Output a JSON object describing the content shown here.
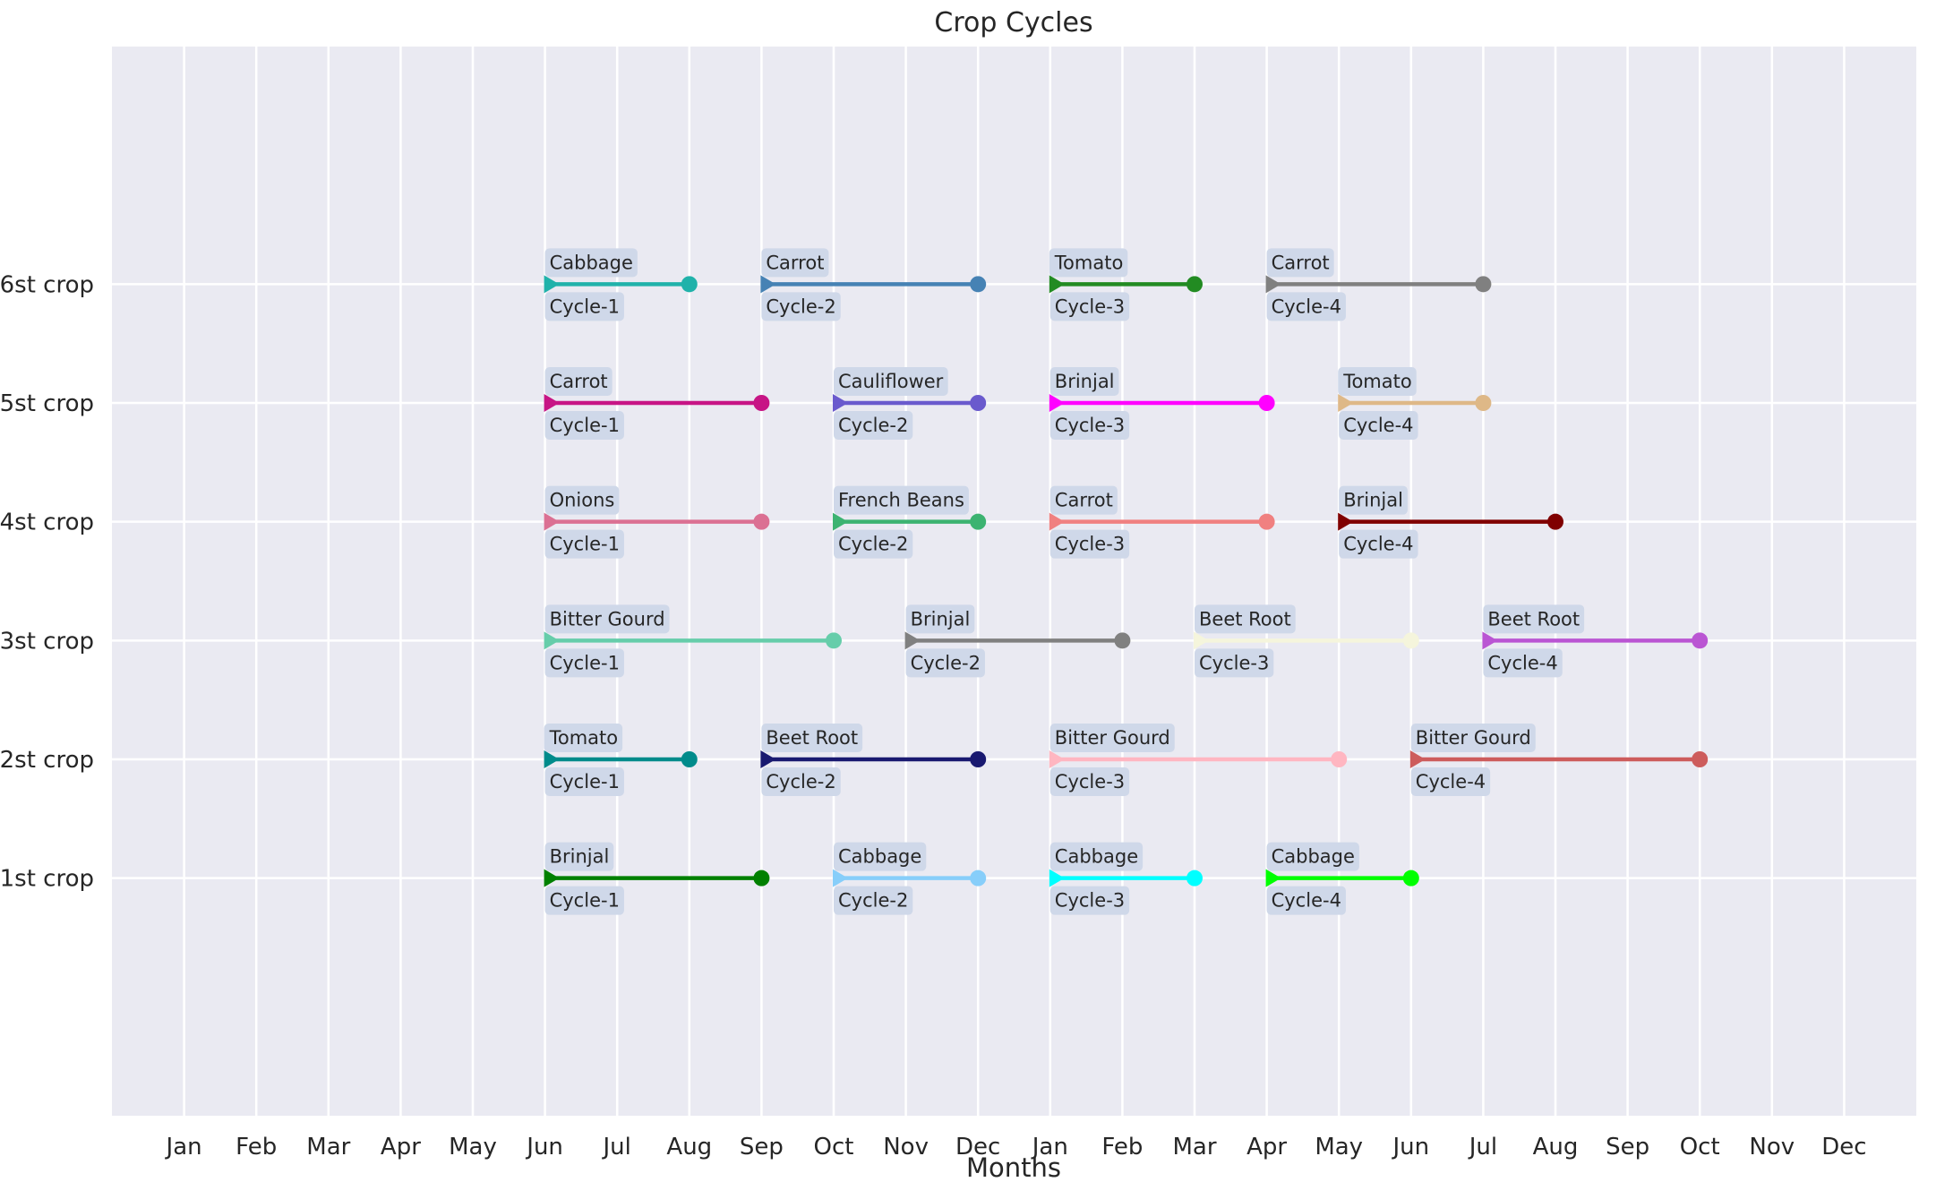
{
  "chart_data": {
    "type": "gantt-line",
    "title": "Crop Cycles",
    "xlabel": "Months",
    "ylabel": "",
    "grid": true,
    "x_tick_labels": [
      "Jan",
      "Feb",
      "Mar",
      "Apr",
      "May",
      "Jun",
      "Jul",
      "Aug",
      "Sep",
      "Oct",
      "Nov",
      "Dec",
      "Jan",
      "Feb",
      "Mar",
      "Apr",
      "May",
      "Jun",
      "Jul",
      "Aug",
      "Sep",
      "Oct",
      "Nov",
      "Dec"
    ],
    "xlim": [
      0,
      25
    ],
    "y_tick_labels": [
      "1st crop",
      "2st crop",
      "3st crop",
      "4st crop",
      "5st crop",
      "6st crop"
    ],
    "ylim": [
      -1,
      8
    ],
    "segments": [
      {
        "row": 1,
        "crop": "Brinjal",
        "cycle": "Cycle-1",
        "start": 6,
        "end": 9,
        "color": "#008000"
      },
      {
        "row": 1,
        "crop": "Cabbage",
        "cycle": "Cycle-2",
        "start": 10,
        "end": 12,
        "color": "#87cefa"
      },
      {
        "row": 1,
        "crop": "Cabbage",
        "cycle": "Cycle-3",
        "start": 13,
        "end": 15,
        "color": "#00ffff"
      },
      {
        "row": 1,
        "crop": "Cabbage",
        "cycle": "Cycle-4",
        "start": 16,
        "end": 18,
        "color": "#00ff00"
      },
      {
        "row": 2,
        "crop": "Tomato",
        "cycle": "Cycle-1",
        "start": 6,
        "end": 8,
        "color": "#008b8b"
      },
      {
        "row": 2,
        "crop": "Beet Root",
        "cycle": "Cycle-2",
        "start": 9,
        "end": 12,
        "color": "#191970"
      },
      {
        "row": 2,
        "crop": "Bitter Gourd",
        "cycle": "Cycle-3",
        "start": 13,
        "end": 17,
        "color": "#ffb6c1"
      },
      {
        "row": 2,
        "crop": "Bitter Gourd",
        "cycle": "Cycle-4",
        "start": 18,
        "end": 22,
        "color": "#cd5c5c"
      },
      {
        "row": 3,
        "crop": "Bitter Gourd",
        "cycle": "Cycle-1",
        "start": 6,
        "end": 10,
        "color": "#66cdaa"
      },
      {
        "row": 3,
        "crop": "Brinjal",
        "cycle": "Cycle-2",
        "start": 11,
        "end": 14,
        "color": "#808080"
      },
      {
        "row": 3,
        "crop": "Beet Root",
        "cycle": "Cycle-3",
        "start": 15,
        "end": 18,
        "color": "#f5f5dc"
      },
      {
        "row": 3,
        "crop": "Beet Root",
        "cycle": "Cycle-4",
        "start": 19,
        "end": 22,
        "color": "#ba55d3"
      },
      {
        "row": 4,
        "crop": "Onions",
        "cycle": "Cycle-1",
        "start": 6,
        "end": 9,
        "color": "#db7093"
      },
      {
        "row": 4,
        "crop": "French Beans",
        "cycle": "Cycle-2",
        "start": 10,
        "end": 12,
        "color": "#3cb371"
      },
      {
        "row": 4,
        "crop": "Carrot",
        "cycle": "Cycle-3",
        "start": 13,
        "end": 16,
        "color": "#f08080"
      },
      {
        "row": 4,
        "crop": "Brinjal",
        "cycle": "Cycle-4",
        "start": 17,
        "end": 20,
        "color": "#800000"
      },
      {
        "row": 5,
        "crop": "Carrot",
        "cycle": "Cycle-1",
        "start": 6,
        "end": 9,
        "color": "#c71585"
      },
      {
        "row": 5,
        "crop": "Cauliflower",
        "cycle": "Cycle-2",
        "start": 10,
        "end": 12,
        "color": "#6a5acd"
      },
      {
        "row": 5,
        "crop": "Brinjal",
        "cycle": "Cycle-3",
        "start": 13,
        "end": 16,
        "color": "#ff00ff"
      },
      {
        "row": 5,
        "crop": "Tomato",
        "cycle": "Cycle-4",
        "start": 17,
        "end": 19,
        "color": "#deb887"
      },
      {
        "row": 6,
        "crop": "Cabbage",
        "cycle": "Cycle-1",
        "start": 6,
        "end": 8,
        "color": "#20b2aa"
      },
      {
        "row": 6,
        "crop": "Carrot",
        "cycle": "Cycle-2",
        "start": 9,
        "end": 12,
        "color": "#4682b4"
      },
      {
        "row": 6,
        "crop": "Tomato",
        "cycle": "Cycle-3",
        "start": 13,
        "end": 15,
        "color": "#228b22"
      },
      {
        "row": 6,
        "crop": "Carrot",
        "cycle": "Cycle-4",
        "start": 16,
        "end": 19,
        "color": "#808080"
      }
    ]
  }
}
